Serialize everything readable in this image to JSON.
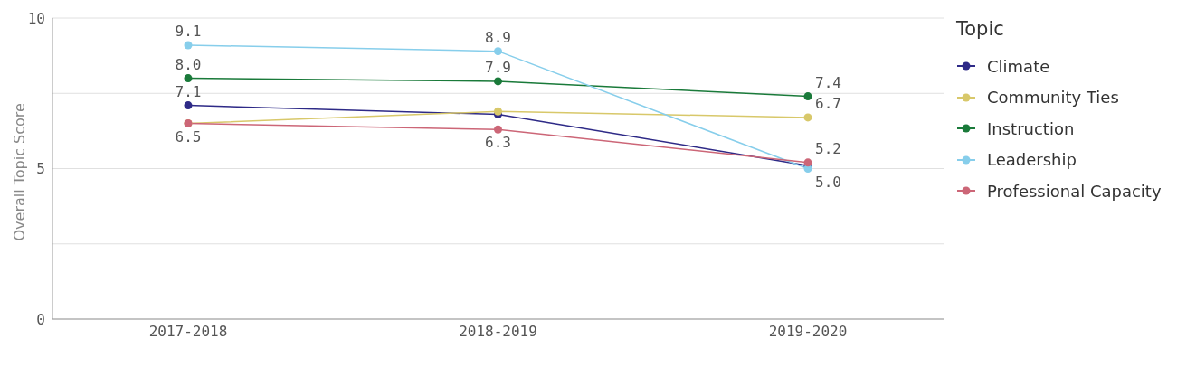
{
  "chart_data": {
    "type": "line",
    "ylabel": "Overall Topic Score",
    "legend_title": "Topic",
    "categories": [
      "2017-2018",
      "2018-2019",
      "2019-2020"
    ],
    "series": [
      {
        "name": "Climate",
        "color": "#2e2a87",
        "values": [
          7.1,
          6.8,
          5.1
        ],
        "value_labels": [
          "7.1",
          null,
          null
        ]
      },
      {
        "name": "Community Ties",
        "color": "#d8c86a",
        "values": [
          6.5,
          6.9,
          6.7
        ],
        "value_labels": [
          null,
          null,
          "6.7"
        ]
      },
      {
        "name": "Instruction",
        "color": "#1a7a3a",
        "values": [
          8.0,
          7.9,
          7.4
        ],
        "value_labels": [
          "8.0",
          "7.9",
          "7.4"
        ]
      },
      {
        "name": "Leadership",
        "color": "#87ceeb",
        "values": [
          9.1,
          8.9,
          5.0
        ],
        "value_labels": [
          "9.1",
          "8.9",
          "5.0"
        ]
      },
      {
        "name": "Professional Capacity",
        "color": "#cc6677",
        "values": [
          6.5,
          6.3,
          5.2
        ],
        "value_labels": [
          "6.5",
          "6.3",
          "5.2"
        ]
      }
    ],
    "ylim": [
      0,
      10
    ],
    "yticks": [
      0,
      {
        "value": 2.5,
        "label": null
      },
      5,
      {
        "value": 7.5,
        "label": null
      },
      10
    ],
    "grid": "y",
    "legend": "right",
    "marker": "circle",
    "line_style": "solid"
  }
}
